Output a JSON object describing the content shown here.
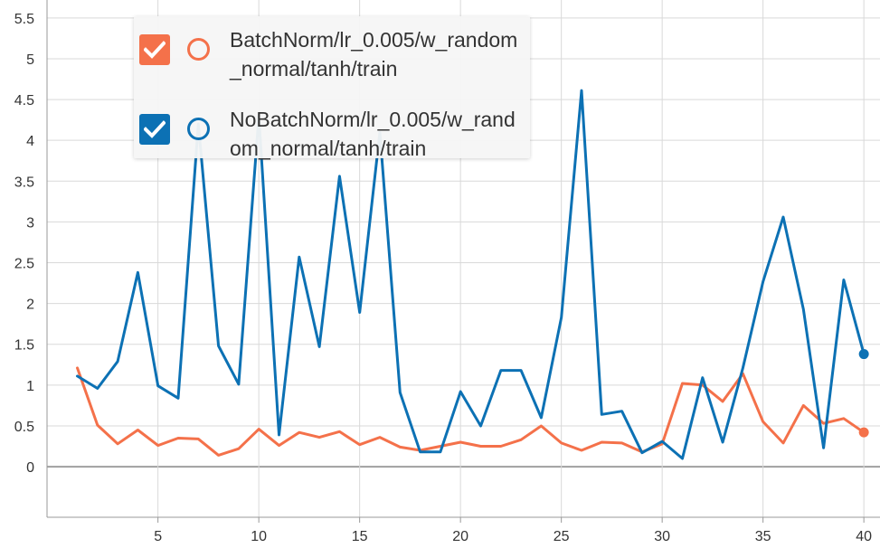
{
  "colors": {
    "batchnorm": "#f4714a",
    "nobatchnorm": "#0c71b4",
    "grid": "#d9d9d9",
    "zero_line": "#a0a0a0",
    "axis": "#999999"
  },
  "legend": {
    "items": [
      {
        "label": "BatchNorm/lr_0.005/w_random_normal/tanh/train",
        "checkbox_icon": "checkmark-icon",
        "marker_icon": "circle-icon",
        "color": "#f4714a"
      },
      {
        "label": "NoBatchNorm/lr_0.005/w_random_normal/tanh/train",
        "checkbox_icon": "checkmark-icon",
        "marker_icon": "circle-icon",
        "color": "#0c71b4"
      }
    ]
  },
  "chart_data": {
    "type": "line",
    "title": "",
    "xlabel": "",
    "ylabel": "",
    "xlim": [
      -0.5,
      40.8
    ],
    "ylim": [
      -0.62,
      5.72
    ],
    "xticks": [
      5,
      10,
      15,
      20,
      25,
      30,
      35,
      40
    ],
    "yticks": [
      0,
      0.5,
      1,
      1.5,
      2,
      2.5,
      3,
      3.5,
      4,
      4.5,
      5,
      5.5
    ],
    "ytick_labels": [
      "0",
      "0.5",
      "1",
      "1.5",
      "2",
      "2.5",
      "3",
      "3.5",
      "4",
      "4.5",
      "5",
      "5.5"
    ],
    "grid": true,
    "legend_position": "top-left",
    "x": [
      1,
      2,
      3,
      4,
      5,
      6,
      7,
      8,
      9,
      10,
      11,
      12,
      13,
      14,
      15,
      16,
      17,
      18,
      19,
      20,
      21,
      22,
      23,
      24,
      25,
      26,
      27,
      28,
      29,
      30,
      31,
      32,
      33,
      34,
      35,
      36,
      37,
      38,
      39,
      40
    ],
    "series": [
      {
        "name": "BatchNorm/lr_0.005/w_random_normal/tanh/train",
        "color": "#f4714a",
        "values": [
          1.21,
          0.51,
          0.28,
          0.45,
          0.26,
          0.35,
          0.34,
          0.14,
          0.22,
          0.46,
          0.26,
          0.42,
          0.36,
          0.43,
          0.27,
          0.36,
          0.24,
          0.2,
          0.25,
          0.3,
          0.25,
          0.25,
          0.33,
          0.5,
          0.29,
          0.2,
          0.3,
          0.29,
          0.18,
          0.28,
          1.02,
          1.0,
          0.8,
          1.14,
          0.55,
          0.29,
          0.75,
          0.53,
          0.59,
          0.42
        ]
      },
      {
        "name": "NoBatchNorm/lr_0.005/w_random_normal/tanh/train",
        "color": "#0c71b4",
        "values": [
          1.11,
          0.96,
          1.29,
          2.38,
          0.99,
          0.84,
          4.2,
          1.48,
          1.01,
          4.3,
          0.39,
          2.57,
          1.47,
          3.56,
          1.89,
          4.1,
          0.91,
          0.18,
          0.18,
          0.92,
          0.5,
          1.18,
          1.18,
          0.6,
          1.83,
          4.61,
          0.64,
          0.68,
          0.17,
          0.31,
          0.1,
          1.09,
          0.3,
          1.21,
          2.27,
          3.06,
          1.93,
          0.23,
          2.29,
          1.38
        ]
      }
    ]
  }
}
